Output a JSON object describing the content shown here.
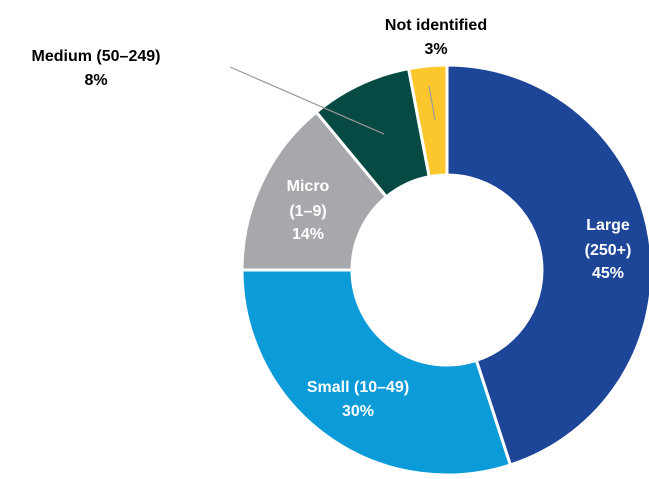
{
  "chart_data": {
    "type": "donut",
    "categories": [
      "Large (250+)",
      "Small (10–49)",
      "Micro (1–9)",
      "Medium (50–249)",
      "Not identified"
    ],
    "values": [
      45,
      30,
      14,
      8,
      3
    ],
    "value_labels": [
      "45%",
      "30%",
      "14%",
      "8%",
      "3%"
    ],
    "colors": [
      "#1d4598",
      "#0b9bd9",
      "#a6a8ab",
      "#074a44",
      "#fcc72d"
    ]
  }
}
